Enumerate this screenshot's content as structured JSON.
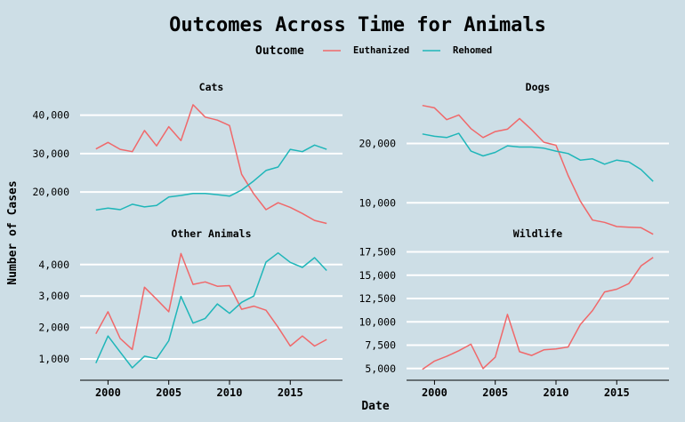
{
  "title": "Outcomes Across Time for Animals",
  "legend": {
    "title": "Outcome",
    "items": [
      {
        "label": "Euthanized",
        "color": "#f0686a"
      },
      {
        "label": "Rehomed",
        "color": "#1fb6b9"
      }
    ]
  },
  "axes": {
    "xlabel": "Date",
    "ylabel": "Number of Cases"
  },
  "chart_data": {
    "type": "line",
    "xlabel": "Date",
    "ylabel": "Number of Cases",
    "x": [
      1999,
      2000,
      2001,
      2002,
      2003,
      2004,
      2005,
      2006,
      2007,
      2008,
      2009,
      2010,
      2011,
      2012,
      2013,
      2014,
      2015,
      2016,
      2017,
      2018
    ],
    "xlim": [
      1997.7,
      2019.3
    ],
    "xticks": [
      2000,
      2005,
      2010,
      2015
    ],
    "xtick_labels": [
      "2000",
      "2005",
      "2010",
      "2015"
    ],
    "grid": true,
    "legend_position": "top",
    "facets": [
      {
        "title": "Cats",
        "ylim": [
          11000,
          45000
        ],
        "yticks": [
          20000,
          30000,
          40000
        ],
        "ytick_labels": [
          "20,000",
          "30,000",
          "40,000"
        ],
        "series": [
          {
            "name": "Euthanized",
            "values": [
              31200,
              32900,
              31100,
              30500,
              36000,
              32000,
              37000,
              33400,
              42700,
              39500,
              38700,
              37300,
              24600,
              19500,
              15400,
              17200,
              16000,
              14400,
              12600,
              11800
            ]
          },
          {
            "name": "Rehomed",
            "values": [
              15300,
              15800,
              15400,
              16800,
              16100,
              16500,
              18700,
              19100,
              19600,
              19600,
              19300,
              18900,
              20500,
              22900,
              25600,
              26500,
              31100,
              30500,
              32200,
              31100
            ]
          }
        ]
      },
      {
        "title": "Dogs",
        "ylim": [
          6000,
          28000
        ],
        "yticks": [
          10000,
          20000
        ],
        "ytick_labels": [
          "10,000",
          "20,000"
        ],
        "series": [
          {
            "name": "Euthanized",
            "values": [
              26400,
              26000,
              24000,
              24800,
              22500,
              21000,
              22000,
              22400,
              24200,
              22300,
              20200,
              19700,
              14600,
              10300,
              7100,
              6700,
              6000,
              5900,
              5800,
              4700
            ]
          },
          {
            "name": "Rehomed",
            "values": [
              21600,
              21200,
              21000,
              21700,
              18700,
              17900,
              18500,
              19600,
              19400,
              19400,
              19200,
              18700,
              18300,
              17200,
              17400,
              16500,
              17200,
              16900,
              15600,
              13600
            ]
          }
        ]
      },
      {
        "title": "Other Animals",
        "ylim": [
          550,
          4700
        ],
        "yticks": [
          1000,
          2000,
          3000,
          4000
        ],
        "ytick_labels": [
          "1,000",
          "2,000",
          "3,000",
          "4,000"
        ],
        "series": [
          {
            "name": "Euthanized",
            "values": [
              1800,
              2500,
              1650,
              1300,
              3280,
              2900,
              2500,
              4350,
              3370,
              3450,
              3310,
              3330,
              2580,
              2680,
              2550,
              2010,
              1410,
              1730,
              1410,
              1620
            ]
          },
          {
            "name": "Rehomed",
            "values": [
              870,
              1730,
              1220,
              720,
              1090,
              1010,
              1580,
              2990,
              2140,
              2290,
              2750,
              2450,
              2800,
              3000,
              4080,
              4370,
              4070,
              3910,
              4220,
              3810
            ]
          }
        ]
      },
      {
        "title": "Wildlife",
        "ylim": [
          4500,
          18500
        ],
        "yticks": [
          5000,
          7500,
          10000,
          12500,
          15000,
          17500
        ],
        "ytick_labels": [
          "5,000",
          "7,500",
          "10,000",
          "12,500",
          "15,000",
          "17,500"
        ],
        "series": [
          {
            "name": "Euthanized",
            "values": [
              4900,
              5800,
              6300,
              6900,
              7600,
              5000,
              6200,
              10800,
              6800,
              6400,
              7000,
              7100,
              7300,
              9700,
              11200,
              13200,
              13500,
              14100,
              16000,
              16900
            ]
          }
        ]
      }
    ]
  }
}
